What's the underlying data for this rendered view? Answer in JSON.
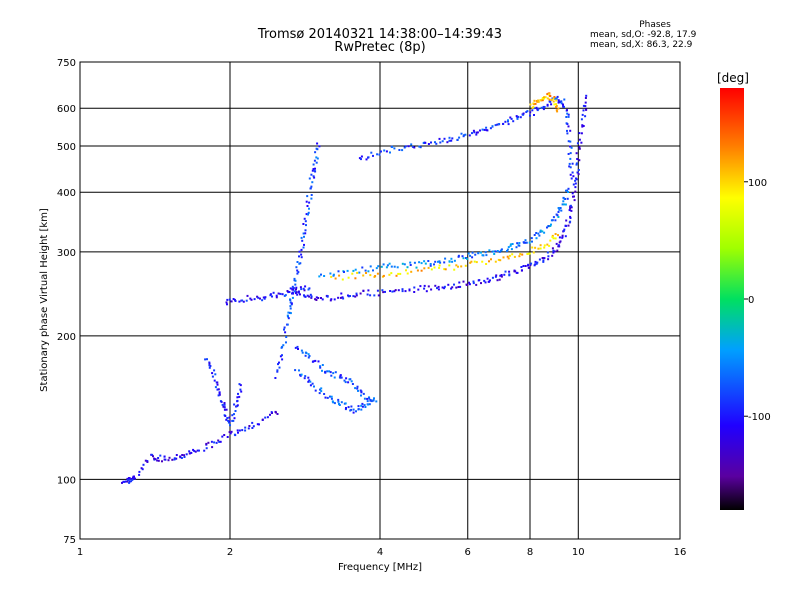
{
  "chart_data": {
    "type": "scatter",
    "title": "Tromsø 20140321 14:38:00–14:39:43",
    "subtitle": "RwPretec (8p)",
    "xlabel": "Frequency [MHz]",
    "ylabel": "Stationary phase Virtual Height [km]",
    "x_scale": "log",
    "y_scale": "log",
    "xlim": [
      1,
      16
    ],
    "ylim": [
      75,
      750
    ],
    "xticks": [
      1,
      2,
      4,
      6,
      8,
      10,
      16
    ],
    "xtick_labels": [
      "1",
      "2",
      "4",
      "6",
      "8",
      "10",
      "16"
    ],
    "yticks": [
      75,
      100,
      200,
      300,
      400,
      500,
      600,
      750
    ],
    "ytick_labels": [
      "75",
      "100",
      "200",
      "300",
      "400",
      "500",
      "600",
      "750"
    ],
    "grid": true,
    "phases": {
      "header": "Phases",
      "line_o": "mean, sd,O: -92.8, 17.9",
      "line_x": "mean, sd,X:  86.3, 22.9"
    },
    "colorbar": {
      "label": "[deg]",
      "range": [
        -180,
        180
      ],
      "ticks": [
        100,
        0,
        -100
      ],
      "tick_labels": [
        "100",
        "0",
        "-100"
      ]
    },
    "traces": [
      {
        "points": [
          [
            1.22,
            100
          ],
          [
            1.25,
            100
          ],
          [
            1.28,
            101
          ],
          [
            1.38,
            112
          ],
          [
            1.45,
            111
          ],
          [
            1.55,
            112
          ],
          [
            1.65,
            114
          ],
          [
            1.8,
            118
          ],
          [
            1.95,
            123
          ],
          [
            2.1,
            128
          ],
          [
            2.3,
            133
          ],
          [
            2.5,
            140
          ]
        ],
        "phase": -110
      },
      {
        "points": [
          [
            1.78,
            180
          ],
          [
            1.85,
            165
          ],
          [
            1.9,
            150
          ],
          [
            1.95,
            140
          ],
          [
            2.0,
            132
          ],
          [
            2.05,
            145
          ],
          [
            2.1,
            160
          ]
        ],
        "phase": -95
      },
      {
        "points": [
          [
            1.95,
            235
          ],
          [
            2.1,
            240
          ],
          [
            2.3,
            242
          ],
          [
            2.5,
            245
          ],
          [
            2.7,
            250
          ],
          [
            2.9,
            255
          ]
        ],
        "phase": -100
      },
      {
        "points": [
          [
            2.45,
            165
          ],
          [
            2.55,
            190
          ],
          [
            2.6,
            220
          ],
          [
            2.65,
            240
          ],
          [
            2.7,
            260
          ],
          [
            2.75,
            290
          ],
          [
            2.8,
            330
          ],
          [
            2.85,
            370
          ],
          [
            2.9,
            420
          ],
          [
            2.95,
            460
          ],
          [
            3.0,
            510
          ]
        ],
        "phase": -80
      },
      {
        "points": [
          [
            2.6,
            250
          ],
          [
            2.8,
            245
          ],
          [
            3.0,
            240
          ],
          [
            3.3,
            243
          ],
          [
            3.6,
            246
          ],
          [
            4.0,
            248
          ],
          [
            4.5,
            250
          ],
          [
            5.0,
            253
          ],
          [
            5.5,
            256
          ],
          [
            6.0,
            258
          ],
          [
            6.5,
            262
          ],
          [
            7.0,
            268
          ],
          [
            7.5,
            275
          ],
          [
            8.0,
            282
          ],
          [
            8.5,
            292
          ],
          [
            9.0,
            305
          ],
          [
            9.3,
            325
          ],
          [
            9.5,
            350
          ],
          [
            9.7,
            385
          ],
          [
            9.85,
            430
          ],
          [
            10.0,
            500
          ],
          [
            10.2,
            580
          ],
          [
            10.3,
            640
          ]
        ],
        "phase": -110
      },
      {
        "points": [
          [
            3.0,
            270
          ],
          [
            3.5,
            275
          ],
          [
            4.0,
            280
          ],
          [
            4.5,
            282
          ],
          [
            5.0,
            285
          ],
          [
            5.5,
            290
          ],
          [
            6.0,
            295
          ],
          [
            6.5,
            300
          ],
          [
            7.0,
            305
          ],
          [
            7.5,
            312
          ],
          [
            8.0,
            320
          ],
          [
            8.5,
            335
          ],
          [
            9.0,
            355
          ],
          [
            9.3,
            380
          ],
          [
            9.5,
            410
          ]
        ],
        "phase": -60
      },
      {
        "points": [
          [
            3.2,
            265
          ],
          [
            3.8,
            270
          ],
          [
            4.4,
            272
          ],
          [
            5.2,
            278
          ],
          [
            6.0,
            283
          ],
          [
            7.0,
            290
          ],
          [
            7.8,
            298
          ],
          [
            8.6,
            312
          ],
          [
            9.1,
            330
          ]
        ],
        "phase": 100
      },
      {
        "points": [
          [
            3.6,
            470
          ],
          [
            4.0,
            490
          ],
          [
            4.5,
            500
          ],
          [
            5.0,
            510
          ],
          [
            5.5,
            520
          ],
          [
            6.0,
            530
          ],
          [
            6.5,
            545
          ],
          [
            7.0,
            560
          ],
          [
            7.5,
            575
          ],
          [
            8.0,
            590
          ],
          [
            8.5,
            610
          ],
          [
            9.0,
            630
          ],
          [
            9.3,
            620
          ],
          [
            9.5,
            560
          ],
          [
            9.6,
            480
          ],
          [
            9.7,
            420
          ]
        ],
        "phase": -90
      },
      {
        "points": [
          [
            8.0,
            610
          ],
          [
            8.3,
            625
          ],
          [
            8.6,
            640
          ],
          [
            8.9,
            630
          ],
          [
            9.1,
            590
          ]
        ],
        "phase": 110
      },
      {
        "points": [
          [
            2.7,
            190
          ],
          [
            2.9,
            180
          ],
          [
            3.1,
            170
          ],
          [
            3.3,
            165
          ],
          [
            3.5,
            160
          ],
          [
            3.7,
            150
          ],
          [
            3.9,
            145
          ]
        ],
        "phase": -80
      },
      {
        "points": [
          [
            2.7,
            170
          ],
          [
            2.9,
            160
          ],
          [
            3.1,
            150
          ],
          [
            3.3,
            145
          ],
          [
            3.5,
            140
          ],
          [
            3.7,
            143
          ],
          [
            3.9,
            148
          ]
        ],
        "phase": -75
      }
    ]
  }
}
